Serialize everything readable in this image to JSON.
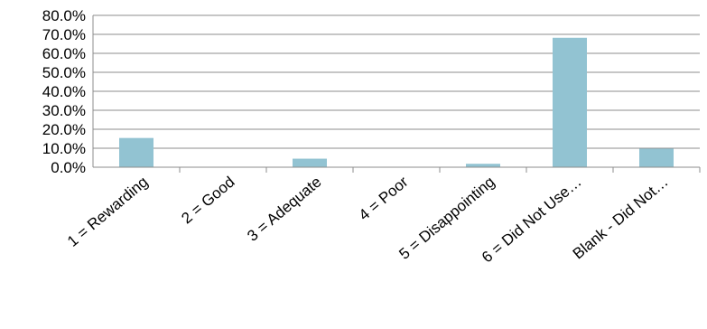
{
  "chart_data": {
    "type": "bar",
    "categories": [
      "1 = Rewarding",
      "2 = Good",
      "3 =  Adequate",
      "4 = Poor",
      "5 = Disappointing",
      "6 = Did Not Use…",
      "Blank - Did Not…"
    ],
    "values": [
      15.4,
      0.0,
      4.5,
      0.0,
      1.8,
      68.2,
      9.8
    ],
    "y_ticks": [
      "0.0%",
      "10.0%",
      "20.0%",
      "30.0%",
      "40.0%",
      "50.0%",
      "60.0%",
      "70.0%",
      "80.0%"
    ],
    "ylim": [
      0,
      80
    ],
    "y_unit": "%",
    "title": "",
    "xlabel": "",
    "ylabel": "",
    "grid": true,
    "legend": "none",
    "colors": {
      "bar": "#92c3d2",
      "grid": "#8c8c8c",
      "axis": "#8c8c8c"
    }
  }
}
